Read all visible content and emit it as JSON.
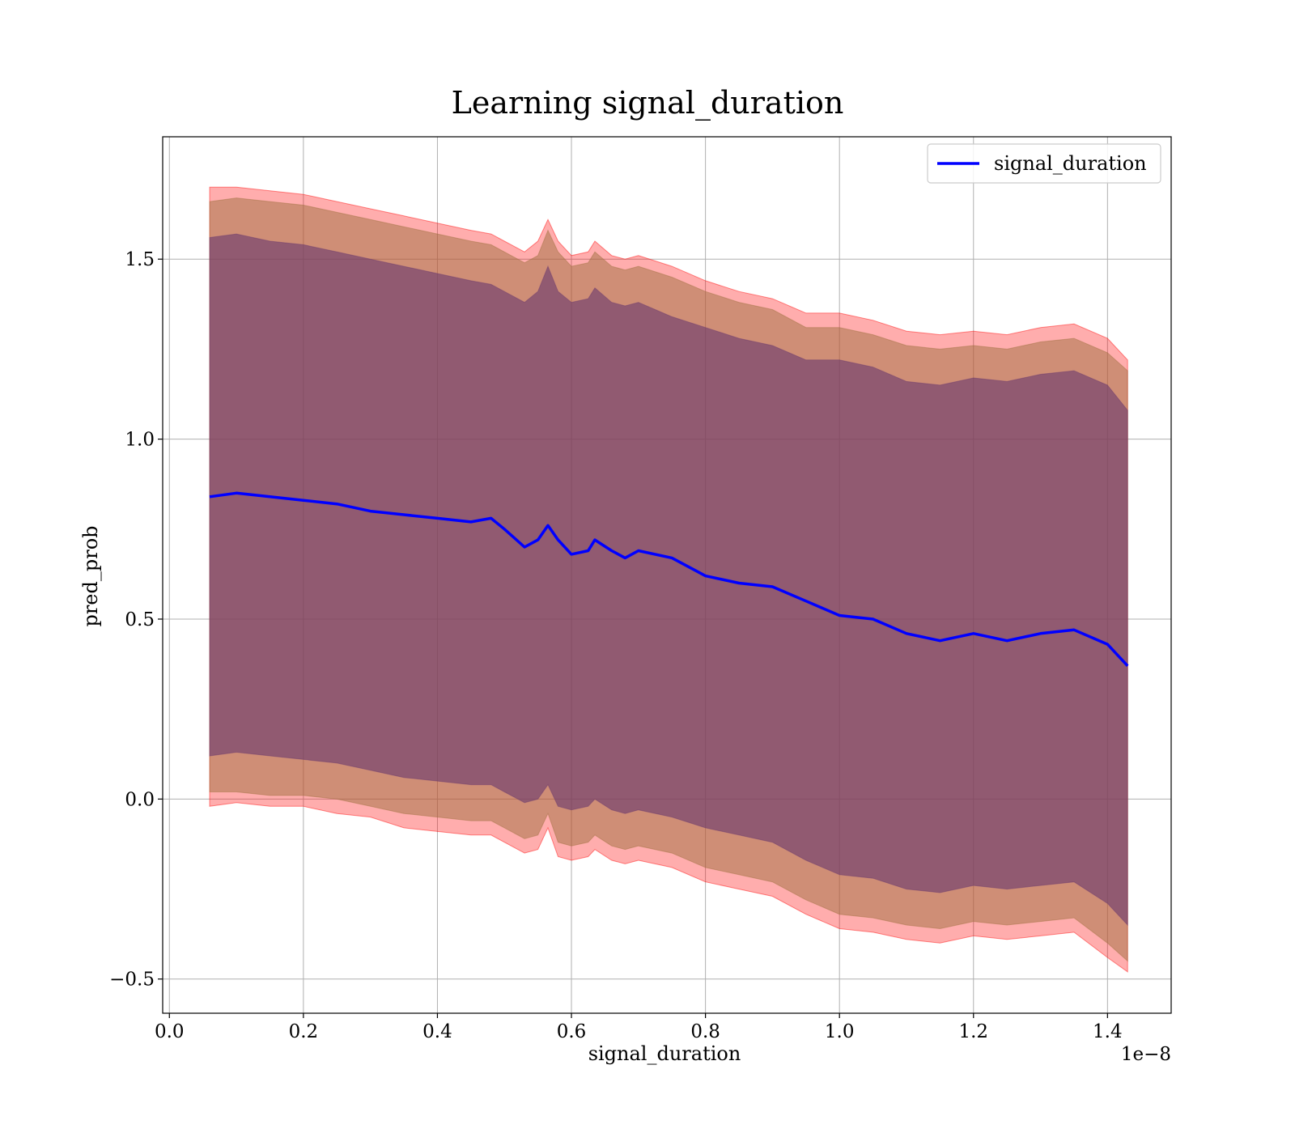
{
  "chart_data": {
    "type": "line",
    "title": "Learning signal_duration",
    "xlabel": "signal_duration",
    "ylabel": "pred_prob",
    "x_offset_label": "1e−8",
    "xlim": [
      -0.01,
      1.495
    ],
    "ylim": [
      -0.595,
      1.84
    ],
    "xticks": [
      0.0,
      0.2,
      0.4,
      0.6,
      0.8,
      1.0,
      1.2,
      1.4
    ],
    "xtick_labels": [
      "0.0",
      "0.2",
      "0.4",
      "0.6",
      "0.8",
      "1.0",
      "1.2",
      "1.4"
    ],
    "yticks": [
      -0.5,
      0.0,
      0.5,
      1.0,
      1.5
    ],
    "ytick_labels": [
      "−0.5",
      "0.0",
      "0.5",
      "1.0",
      "1.5"
    ],
    "grid": true,
    "legend_position": "top-right",
    "colors": {
      "line": "#0000ff",
      "band_outer": "#ff0000",
      "band_middle": "#a07040",
      "band_inner": "#6a3a6e",
      "grid": "#b0b0b0"
    },
    "x": [
      0.06,
      0.1,
      0.15,
      0.2,
      0.25,
      0.3,
      0.35,
      0.4,
      0.45,
      0.48,
      0.5,
      0.53,
      0.55,
      0.565,
      0.58,
      0.6,
      0.625,
      0.635,
      0.66,
      0.68,
      0.7,
      0.75,
      0.8,
      0.85,
      0.9,
      0.95,
      1.0,
      1.05,
      1.1,
      1.15,
      1.2,
      1.25,
      1.3,
      1.35,
      1.4,
      1.43
    ],
    "series": [
      {
        "name": "signal_duration",
        "kind": "line",
        "values": [
          0.84,
          0.85,
          0.84,
          0.83,
          0.82,
          0.8,
          0.79,
          0.78,
          0.77,
          0.78,
          0.75,
          0.7,
          0.72,
          0.76,
          0.72,
          0.68,
          0.69,
          0.72,
          0.69,
          0.67,
          0.69,
          0.67,
          0.62,
          0.6,
          0.59,
          0.55,
          0.51,
          0.5,
          0.46,
          0.44,
          0.46,
          0.44,
          0.46,
          0.47,
          0.43,
          0.37
        ]
      },
      {
        "kind": "band",
        "upper": [
          1.7,
          1.7,
          1.69,
          1.68,
          1.66,
          1.64,
          1.62,
          1.6,
          1.58,
          1.57,
          1.55,
          1.52,
          1.55,
          1.61,
          1.55,
          1.51,
          1.52,
          1.55,
          1.51,
          1.5,
          1.51,
          1.48,
          1.44,
          1.41,
          1.39,
          1.35,
          1.35,
          1.33,
          1.3,
          1.29,
          1.3,
          1.29,
          1.31,
          1.32,
          1.28,
          1.22
        ],
        "lower": [
          -0.02,
          -0.01,
          -0.02,
          -0.02,
          -0.04,
          -0.05,
          -0.08,
          -0.09,
          -0.1,
          -0.1,
          -0.12,
          -0.15,
          -0.14,
          -0.08,
          -0.16,
          -0.17,
          -0.16,
          -0.14,
          -0.17,
          -0.18,
          -0.17,
          -0.19,
          -0.23,
          -0.25,
          -0.27,
          -0.32,
          -0.36,
          -0.37,
          -0.39,
          -0.4,
          -0.38,
          -0.39,
          -0.38,
          -0.37,
          -0.44,
          -0.48
        ]
      },
      {
        "kind": "band",
        "upper": [
          1.66,
          1.67,
          1.66,
          1.65,
          1.63,
          1.61,
          1.59,
          1.57,
          1.55,
          1.54,
          1.52,
          1.49,
          1.51,
          1.58,
          1.52,
          1.48,
          1.49,
          1.52,
          1.48,
          1.47,
          1.48,
          1.45,
          1.41,
          1.38,
          1.36,
          1.31,
          1.31,
          1.29,
          1.26,
          1.25,
          1.26,
          1.25,
          1.27,
          1.28,
          1.24,
          1.19
        ],
        "lower": [
          0.02,
          0.02,
          0.01,
          0.01,
          0.0,
          -0.02,
          -0.04,
          -0.05,
          -0.06,
          -0.06,
          -0.08,
          -0.11,
          -0.1,
          -0.04,
          -0.12,
          -0.13,
          -0.12,
          -0.1,
          -0.13,
          -0.14,
          -0.13,
          -0.15,
          -0.19,
          -0.21,
          -0.23,
          -0.28,
          -0.32,
          -0.33,
          -0.35,
          -0.36,
          -0.34,
          -0.35,
          -0.34,
          -0.33,
          -0.4,
          -0.45
        ]
      },
      {
        "kind": "band",
        "upper": [
          1.56,
          1.57,
          1.55,
          1.54,
          1.52,
          1.5,
          1.48,
          1.46,
          1.44,
          1.43,
          1.41,
          1.38,
          1.41,
          1.48,
          1.41,
          1.38,
          1.39,
          1.42,
          1.38,
          1.37,
          1.38,
          1.34,
          1.31,
          1.28,
          1.26,
          1.22,
          1.22,
          1.2,
          1.16,
          1.15,
          1.17,
          1.16,
          1.18,
          1.19,
          1.15,
          1.08
        ],
        "lower": [
          0.12,
          0.13,
          0.12,
          0.11,
          0.1,
          0.08,
          0.06,
          0.05,
          0.04,
          0.04,
          0.02,
          -0.01,
          0.0,
          0.04,
          -0.02,
          -0.03,
          -0.02,
          0.0,
          -0.03,
          -0.04,
          -0.03,
          -0.05,
          -0.08,
          -0.1,
          -0.12,
          -0.17,
          -0.21,
          -0.22,
          -0.25,
          -0.26,
          -0.24,
          -0.25,
          -0.24,
          -0.23,
          -0.29,
          -0.35
        ]
      }
    ]
  }
}
